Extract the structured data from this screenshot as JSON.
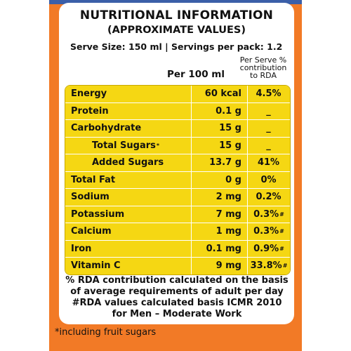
{
  "title": "NUTRITIONAL INFORMATION",
  "subtitle": "(APPROXIMATE VALUES)",
  "serve_line": "Serve Size: 150 ml | Servings per pack: 1.2",
  "headers": {
    "per100": "Per 100 ml",
    "rda_line1": "Per Serve %",
    "rda_line2": "contribution",
    "rda_line3": "to RDA"
  },
  "rows": [
    {
      "name": "Energy",
      "value": "60 kcal",
      "rda": "4.5%",
      "rda_mark": ""
    },
    {
      "name": "Protein",
      "value": "0.1 g",
      "rda": "_",
      "rda_mark": ""
    },
    {
      "name": "Carbohydrate",
      "value": "15 g",
      "rda": "_",
      "rda_mark": ""
    },
    {
      "name": "Total Sugars",
      "name_mark": "*",
      "value": "15 g",
      "rda": "_",
      "rda_mark": ""
    },
    {
      "name": "Added Sugars",
      "value": "13.7 g",
      "rda": "41%",
      "rda_mark": ""
    },
    {
      "name": "Total Fat",
      "value": "0 g",
      "rda": "0%",
      "rda_mark": ""
    },
    {
      "name": "Sodium",
      "value": "2 mg",
      "rda": "0.2%",
      "rda_mark": ""
    },
    {
      "name": "Potassium",
      "value": "7 mg",
      "rda": "0.3%",
      "rda_mark": "#"
    },
    {
      "name": "Calcium",
      "value": "1 mg",
      "rda": "0.3%",
      "rda_mark": "#"
    },
    {
      "name": "Iron",
      "value": "0.1 mg",
      "rda": "0.9%",
      "rda_mark": "#"
    },
    {
      "name": "Vitamin C",
      "value": "9 mg",
      "rda": "33.8%",
      "rda_mark": "#"
    }
  ],
  "footnotes": {
    "line1": "% RDA contribution calculated on the basis",
    "line2": "of average requirements of adult per day",
    "line3": "#RDA values calculated basis ICMR 2010",
    "line4": "for Men – Moderate  Work"
  },
  "bottom_note": "*including fruit sugars",
  "colors": {
    "background": "#f27a26",
    "row_fill": "#f5d713",
    "label": "#ffffff"
  }
}
